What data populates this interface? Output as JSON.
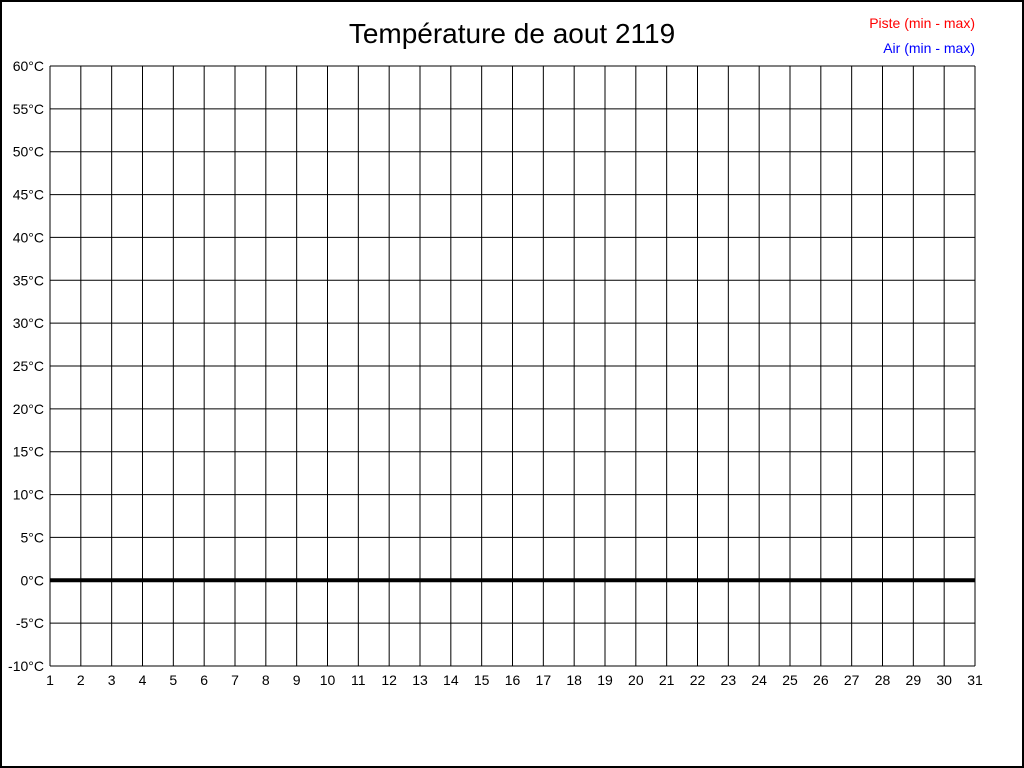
{
  "window": {
    "background_color": "#ffffff",
    "border_color": "#000000"
  },
  "chart_data": {
    "type": "line",
    "title": "Température de aout 2119",
    "xlabel": "",
    "ylabel": "",
    "xlim": [
      1,
      31
    ],
    "ylim": [
      -10,
      60
    ],
    "x_ticks": [
      1,
      2,
      3,
      4,
      5,
      6,
      7,
      8,
      9,
      10,
      11,
      12,
      13,
      14,
      15,
      16,
      17,
      18,
      19,
      20,
      21,
      22,
      23,
      24,
      25,
      26,
      27,
      28,
      29,
      30,
      31
    ],
    "y_ticks": [
      60,
      55,
      50,
      45,
      40,
      35,
      30,
      25,
      20,
      15,
      10,
      5,
      0,
      -5,
      -10
    ],
    "y_unit": "°C",
    "grid": true,
    "grid_color": "#000000",
    "zero_line": {
      "value": 0,
      "emphasized": true,
      "color": "#000000"
    },
    "legend": {
      "position": "top-right",
      "entries": [
        {
          "label": "Piste (min - max)",
          "color": "#ff0000"
        },
        {
          "label": "Air (min - max)",
          "color": "#0000ff"
        }
      ]
    },
    "series": [
      {
        "name": "Piste (min - max)",
        "color": "#ff0000",
        "values": []
      },
      {
        "name": "Air (min - max)",
        "color": "#0000ff",
        "values": []
      }
    ]
  }
}
